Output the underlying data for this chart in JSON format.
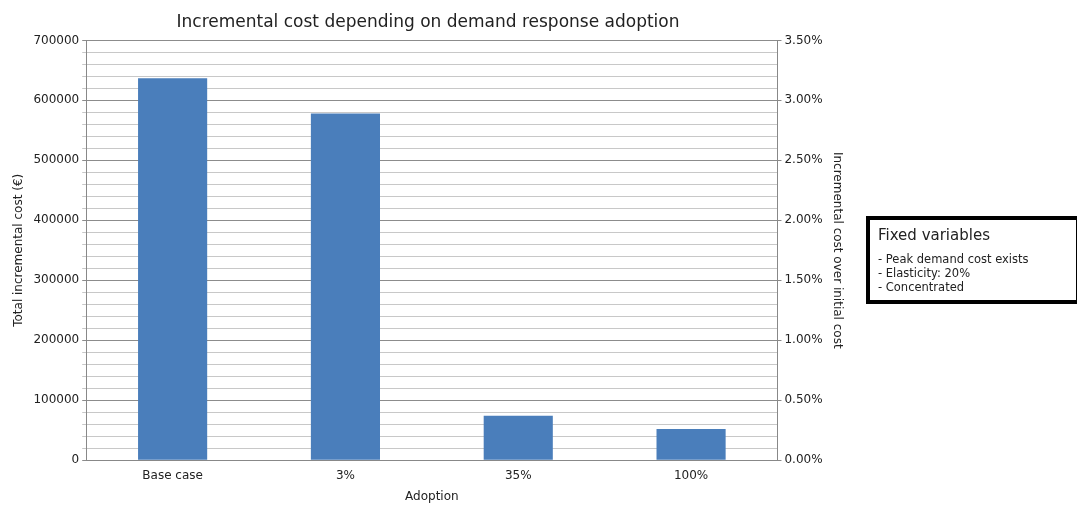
{
  "chart_data": {
    "type": "bar",
    "title": "Incremental cost depending on demand response adoption",
    "xlabel": "Adoption",
    "ylabel": "Total incremental cost (€)",
    "y2label": "Incremental cost over initial cost",
    "categories": [
      "Base case",
      "3%",
      "35%",
      "100%"
    ],
    "series": [
      {
        "color": "#4a7ebb",
        "values": [
          637000,
          578000,
          74000,
          52000
        ]
      }
    ],
    "ylim": [
      0,
      700000
    ],
    "yticks": [
      0,
      {
        "value": 20000,
        "label": null
      },
      {
        "value": 40000,
        "label": null
      },
      {
        "value": 60000,
        "label": null
      },
      {
        "value": 80000,
        "label": null
      },
      100000,
      {
        "value": 120000,
        "label": null
      },
      {
        "value": 140000,
        "label": null
      },
      {
        "value": 160000,
        "label": null
      },
      {
        "value": 180000,
        "label": null
      },
      200000,
      {
        "value": 220000,
        "label": null
      },
      {
        "value": 240000,
        "label": null
      },
      {
        "value": 260000,
        "label": null
      },
      {
        "value": 280000,
        "label": null
      },
      300000,
      {
        "value": 320000,
        "label": null
      },
      {
        "value": 340000,
        "label": null
      },
      {
        "value": 360000,
        "label": null
      },
      {
        "value": 380000,
        "label": null
      },
      400000,
      {
        "value": 420000,
        "label": null
      },
      {
        "value": 440000,
        "label": null
      },
      {
        "value": 460000,
        "label": null
      },
      {
        "value": 480000,
        "label": null
      },
      500000,
      {
        "value": 520000,
        "label": null
      },
      {
        "value": 540000,
        "label": null
      },
      {
        "value": 560000,
        "label": null
      },
      {
        "value": 580000,
        "label": null
      },
      600000,
      {
        "value": 620000,
        "label": null
      },
      {
        "value": 640000,
        "label": null
      },
      {
        "value": 660000,
        "label": null
      },
      {
        "value": 680000,
        "label": null
      },
      700000
    ],
    "y2lim": [
      0,
      3.5
    ],
    "y2ticks": [
      {
        "value": 0,
        "label": "0.00%"
      },
      {
        "value": 0.5,
        "label": "0.50%"
      },
      {
        "value": 1,
        "label": "1.00%"
      },
      {
        "value": 1.5,
        "label": "1.50%"
      },
      {
        "value": 2,
        "label": "2.00%"
      },
      {
        "value": 2.5,
        "label": "2.50%"
      },
      {
        "value": 3,
        "label": "3.00%"
      },
      {
        "value": 3.5,
        "label": "3.50%"
      }
    ],
    "grid": "y",
    "legend": false,
    "annotations": [
      "Fixed variables",
      "- Peak demand cost exists",
      "- Elasticity: 20%",
      "- Concentrated"
    ]
  }
}
